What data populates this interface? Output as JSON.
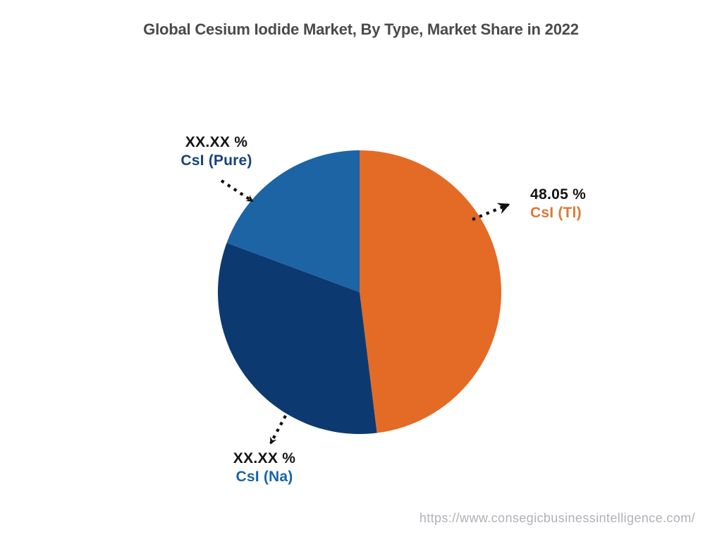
{
  "page": {
    "source_url": "https://www.consegicbusinessintelligence.com/"
  },
  "chart_data": {
    "type": "pie",
    "title": "Global Cesium Iodide Market, By Type, Market Share in 2022",
    "legend_position": "none",
    "start_angle_deg": 0,
    "direction": "clockwise",
    "slices": [
      {
        "label": "CsI (Tl)",
        "display_value": "48.05 %",
        "value": 48.05,
        "color": "#e36b26",
        "label_color": "#dd7838"
      },
      {
        "label": "CsI (Na)",
        "display_value": "XX.XX %",
        "value": 32.6,
        "color": "#0c3a70",
        "label_color": "#1766a8"
      },
      {
        "label": "CsI (Pure)",
        "display_value": "XX.XX %",
        "value": 19.35,
        "color": "#1d64a5",
        "label_color": "#17427c"
      }
    ]
  }
}
